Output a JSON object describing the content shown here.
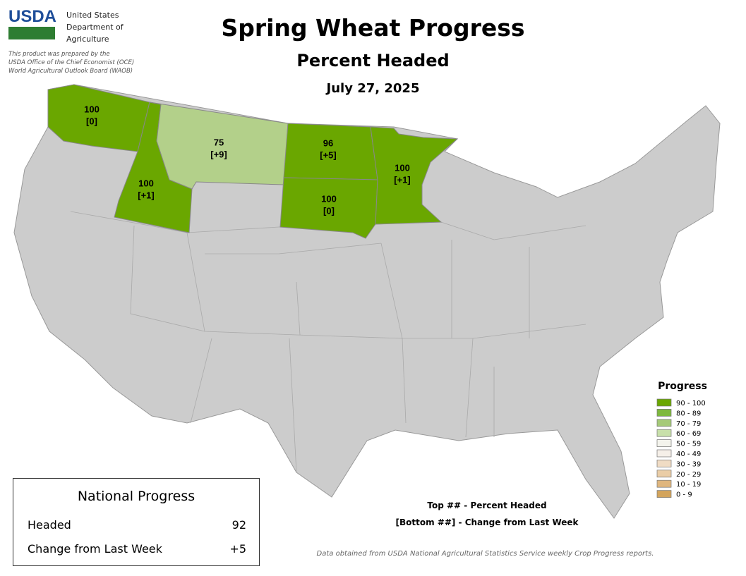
{
  "header": {
    "logo": "USDA",
    "agency": [
      "United States",
      "Department of",
      "Agriculture"
    ],
    "prepared_by": [
      "This product was prepared by the",
      "USDA Office of the Chief Economist (OCE)",
      "World Agricultural Outlook Board (WAOB)"
    ],
    "title": "Spring Wheat Progress",
    "subtitle": "Percent Headed",
    "date": "July 27, 2025"
  },
  "states": [
    {
      "value": 100,
      "change": "[0]",
      "color": "#6aa700"
    },
    {
      "value": 100,
      "change": "[+1]",
      "color": "#6aa700"
    },
    {
      "value": 75,
      "change": "[+9]",
      "color": "#b3d08a"
    },
    {
      "value": 96,
      "change": "[+5]",
      "color": "#6aa700"
    },
    {
      "value": 100,
      "change": "[0]",
      "color": "#6aa700"
    },
    {
      "value": 100,
      "change": "[+1]",
      "color": "#6aa700"
    }
  ],
  "legend": {
    "title": "Progress",
    "items": [
      {
        "label": "90 - 100",
        "color": "#6aa700"
      },
      {
        "label": "80 - 89",
        "color": "#7eb83d"
      },
      {
        "label": "70 - 79",
        "color": "#a5ca78"
      },
      {
        "label": "60 - 69",
        "color": "#c8e0aa"
      },
      {
        "label": "50 - 59",
        "color": "#f3f3ec"
      },
      {
        "label": "40 - 49",
        "color": "#f5efe8"
      },
      {
        "label": "30 - 39",
        "color": "#f0dcc4"
      },
      {
        "label": "20 - 29",
        "color": "#eacda6"
      },
      {
        "label": "10 - 19",
        "color": "#dfb67e"
      },
      {
        "label": "0 - 9",
        "color": "#d3a45c"
      }
    ]
  },
  "key": [
    "Top ## - Percent Headed",
    "[Bottom ##] - Change from Last Week"
  ],
  "national": {
    "title": "National Progress",
    "rows": [
      [
        "Headed",
        92
      ],
      [
        "Change from Last Week",
        "+5"
      ]
    ]
  },
  "source": "Data obtained from USDA National Agricultural Statistics Service weekly Crop Progress reports."
}
